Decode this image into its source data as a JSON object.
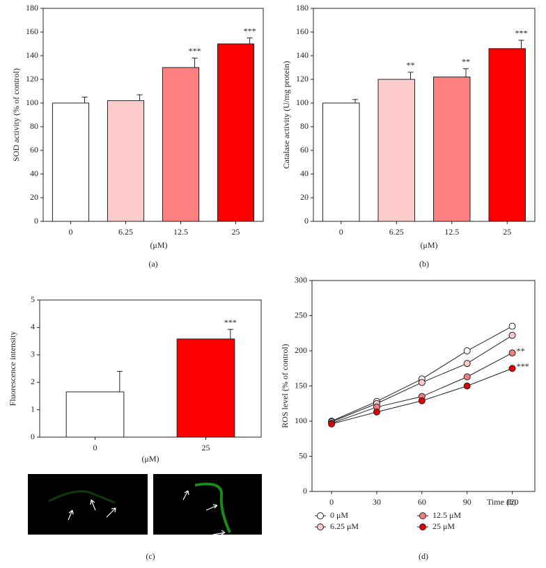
{
  "chart_data": [
    {
      "type": "bar",
      "caption": "(a)",
      "ylabel": "SOD activity (% of control)",
      "xlabel": "(μM)",
      "categories": [
        "0",
        "6.25",
        "12.5",
        "25"
      ],
      "values": [
        100,
        102,
        130,
        150
      ],
      "errors": [
        5,
        5,
        8,
        5
      ],
      "colors": [
        "#ffffff",
        "#ffcccc",
        "#ff8080",
        "#ff0000"
      ],
      "annotations": [
        null,
        null,
        "***",
        "***"
      ],
      "ylim": [
        0,
        180
      ],
      "yticks": [
        0,
        20,
        40,
        60,
        80,
        100,
        120,
        140,
        160,
        180
      ]
    },
    {
      "type": "bar",
      "caption": "(b)",
      "ylabel": "Catalase activity (U/mg protein)",
      "xlabel": "(μM)",
      "categories": [
        "0",
        "6.25",
        "12.5",
        "25"
      ],
      "values": [
        100,
        120,
        122,
        146
      ],
      "errors": [
        3,
        6,
        7,
        7
      ],
      "colors": [
        "#ffffff",
        "#ffcccc",
        "#ff8080",
        "#ff0000"
      ],
      "annotations": [
        null,
        "**",
        "**",
        "***"
      ],
      "ylim": [
        0,
        180
      ],
      "yticks": [
        0,
        20,
        40,
        60,
        80,
        100,
        120,
        140,
        160,
        180
      ]
    },
    {
      "type": "bar",
      "caption": "(c)",
      "ylabel": "Fluorescence intensity",
      "xlabel": "(μM)",
      "categories": [
        "0",
        "25"
      ],
      "values": [
        1.65,
        3.58
      ],
      "errors": [
        0.75,
        0.35
      ],
      "colors": [
        "#ffffff",
        "#ff0000"
      ],
      "annotations": [
        null,
        "***"
      ],
      "ylim": [
        0,
        5
      ],
      "yticks": [
        0,
        1,
        2,
        3,
        4,
        5
      ]
    },
    {
      "type": "line",
      "caption": "(d)",
      "ylabel": "ROS level (% of control)",
      "xlabel": "Time (h)",
      "x": [
        0,
        30,
        60,
        90,
        120
      ],
      "xlim": [
        -13,
        135
      ],
      "xticks": [
        0,
        30,
        60,
        90,
        120
      ],
      "ylim": [
        0,
        300
      ],
      "yticks": [
        0,
        50,
        100,
        150,
        200,
        250,
        300
      ],
      "series": [
        {
          "name": "0 μM",
          "color": "#ffffff",
          "values": [
            100,
            128,
            160,
            200,
            235
          ]
        },
        {
          "name": "6.25 μM",
          "color": "#ffc8c8",
          "values": [
            99,
            125,
            155,
            182,
            222
          ]
        },
        {
          "name": "12.5 μM",
          "color": "#f08080",
          "values": [
            97,
            120,
            135,
            163,
            197
          ],
          "annotation": "**"
        },
        {
          "name": "25 μM",
          "color": "#e00000",
          "values": [
            96,
            113,
            129,
            150,
            175
          ],
          "annotation": "***"
        }
      ]
    }
  ]
}
